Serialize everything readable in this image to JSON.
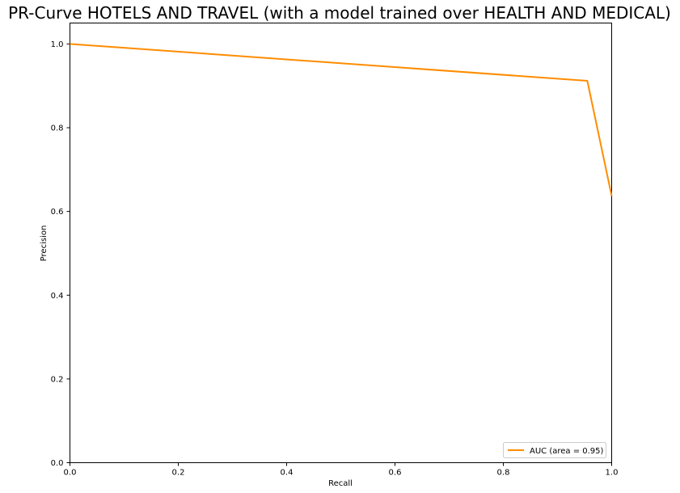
{
  "chart_data": {
    "type": "line",
    "title": "PR-Curve HOTELS AND TRAVEL (with a model trained over HEALTH AND MEDICAL)",
    "xlabel": "Recall",
    "ylabel": "Precision",
    "xlim": [
      0.0,
      1.0
    ],
    "ylim": [
      0.0,
      1.05
    ],
    "xticks": [
      0.0,
      0.2,
      0.4,
      0.6,
      0.8,
      1.0
    ],
    "xtick_labels": [
      "0.0",
      "0.2",
      "0.4",
      "0.6",
      "0.8",
      "1.0"
    ],
    "yticks": [
      0.0,
      0.2,
      0.4,
      0.6,
      0.8,
      1.0
    ],
    "ytick_labels": [
      "0.0",
      "0.2",
      "0.4",
      "0.6",
      "0.8",
      "1.0"
    ],
    "grid": false,
    "legend_position": "lower-right",
    "series": [
      {
        "name": "AUC (area = 0.95)",
        "color": "#ff8c00",
        "x": [
          0.0,
          0.955,
          1.0
        ],
        "y": [
          1.0,
          0.912,
          0.637
        ]
      }
    ]
  }
}
